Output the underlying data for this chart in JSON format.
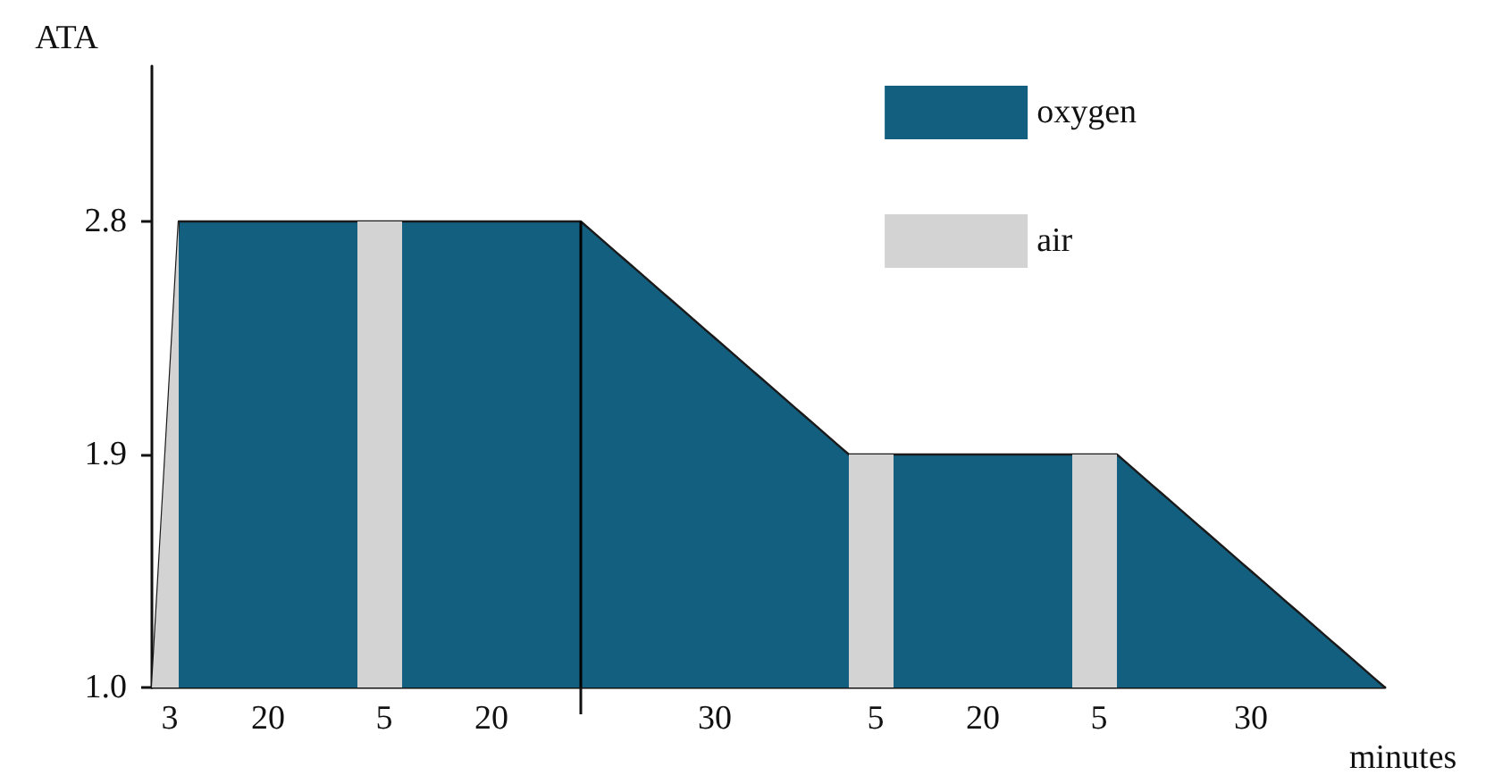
{
  "chart_data": {
    "type": "area",
    "ylabel": "ATA",
    "xlabel": "minutes",
    "ylim": [
      1,
      3.4
    ],
    "yticks": [
      {
        "value": 1,
        "label": "1.0"
      },
      1.9,
      2.8
    ],
    "categories": [
      null,
      null,
      "3",
      null,
      null,
      null,
      null,
      null,
      null,
      null,
      null,
      null,
      null,
      "20",
      null,
      null,
      null,
      null,
      null,
      null,
      null,
      null,
      null,
      null,
      null,
      null,
      "5",
      null,
      null,
      null,
      null,
      null,
      null,
      null,
      null,
      null,
      null,
      null,
      "20",
      null,
      null,
      null,
      null,
      null,
      null,
      null,
      null,
      null,
      null,
      null,
      null,
      null,
      null,
      null,
      null,
      null,
      null,
      null,
      null,
      null,
      null,
      null,
      null,
      "30",
      null,
      null,
      null,
      null,
      null,
      null,
      null,
      null,
      null,
      null,
      null,
      null,
      null,
      null,
      null,
      null,
      null,
      "5",
      null,
      null,
      null,
      null,
      null,
      null,
      null,
      null,
      null,
      null,
      null,
      "20",
      null,
      null,
      null,
      null,
      null,
      null,
      null,
      null,
      null,
      null,
      null,
      null,
      "5",
      null,
      null,
      null,
      null,
      null,
      null,
      null,
      null,
      null,
      null,
      null,
      null,
      null,
      null,
      null,
      null,
      "30",
      null,
      null,
      null,
      null,
      null,
      null,
      null,
      null,
      null,
      null,
      null,
      null,
      null,
      null,
      null
    ],
    "series": [
      {
        "name": "oxygen",
        "color": "#135f7f",
        "values": [
          1,
          1.6,
          2.2,
          2.8,
          2.8,
          2.8,
          2.8,
          2.8,
          2.8,
          2.8,
          2.8,
          2.8,
          2.8,
          2.8,
          2.8,
          2.8,
          2.8,
          2.8,
          2.8,
          2.8,
          2.8,
          2.8,
          2.8,
          2.8,
          2.8,
          2.8,
          2.8,
          2.8,
          2.8,
          2.8,
          2.8,
          2.8,
          2.8,
          2.8,
          2.8,
          2.8,
          2.8,
          2.8,
          2.8,
          2.8,
          2.8,
          2.8,
          2.8,
          2.8,
          2.8,
          2.8,
          2.8,
          2.8,
          2.8,
          2.77,
          2.74,
          2.71,
          2.68,
          2.65,
          2.62,
          2.59,
          2.56,
          2.53,
          2.5,
          2.47,
          2.44,
          2.41,
          2.38,
          2.35,
          2.32,
          2.29,
          2.26,
          2.23,
          2.2,
          2.17,
          2.14,
          2.11,
          2.08,
          2.05,
          2.02,
          1.99,
          1.96,
          1.93,
          1.9,
          1.9,
          1.9,
          1.9,
          1.9,
          1.9,
          1.9,
          1.9,
          1.9,
          1.9,
          1.9,
          1.9,
          1.9,
          1.9,
          1.9,
          1.9,
          1.9,
          1.9,
          1.9,
          1.9,
          1.9,
          1.9,
          1.9,
          1.9,
          1.9,
          1.9,
          1.9,
          1.9,
          1.9,
          1.9,
          1.9,
          1.87,
          1.84,
          1.81,
          1.78,
          1.75,
          1.72,
          1.69,
          1.66,
          1.63,
          1.6,
          1.57,
          1.54,
          1.51,
          1.48,
          1.45,
          1.42,
          1.39,
          1.36,
          1.33,
          1.3,
          1.27,
          1.24,
          1.21,
          1.18,
          1.15,
          1.12,
          1.09,
          1.06,
          1.03,
          1
        ]
      },
      {
        "name": "air",
        "color": "#d3d3d3",
        "values": [
          1,
          1.6,
          2.2,
          2.8,
          null,
          null,
          null,
          null,
          null,
          null,
          null,
          null,
          null,
          null,
          null,
          null,
          null,
          null,
          null,
          null,
          null,
          null,
          null,
          2.8,
          2.8,
          2.8,
          2.8,
          2.8,
          2.8,
          null,
          null,
          null,
          null,
          null,
          null,
          null,
          null,
          null,
          null,
          null,
          null,
          null,
          null,
          null,
          null,
          null,
          null,
          null,
          null,
          null,
          null,
          null,
          null,
          null,
          null,
          null,
          null,
          null,
          null,
          null,
          null,
          null,
          null,
          null,
          null,
          null,
          null,
          null,
          null,
          null,
          null,
          null,
          null,
          null,
          null,
          null,
          null,
          null,
          1.9,
          1.9,
          1.9,
          1.9,
          1.9,
          1.9,
          null,
          null,
          null,
          null,
          null,
          null,
          null,
          null,
          null,
          null,
          null,
          null,
          null,
          null,
          null,
          null,
          null,
          null,
          null,
          1.9,
          1.9,
          1.9,
          1.9,
          1.9,
          1.9,
          null,
          null,
          null,
          null,
          null,
          null,
          null,
          null,
          null,
          null,
          null,
          null,
          null,
          null,
          null,
          null,
          null,
          null,
          null,
          null,
          null,
          null,
          null,
          null,
          null,
          null,
          null,
          null,
          null,
          null
        ]
      }
    ],
    "legend": "top right",
    "grid": false,
    "marker": "none"
  }
}
